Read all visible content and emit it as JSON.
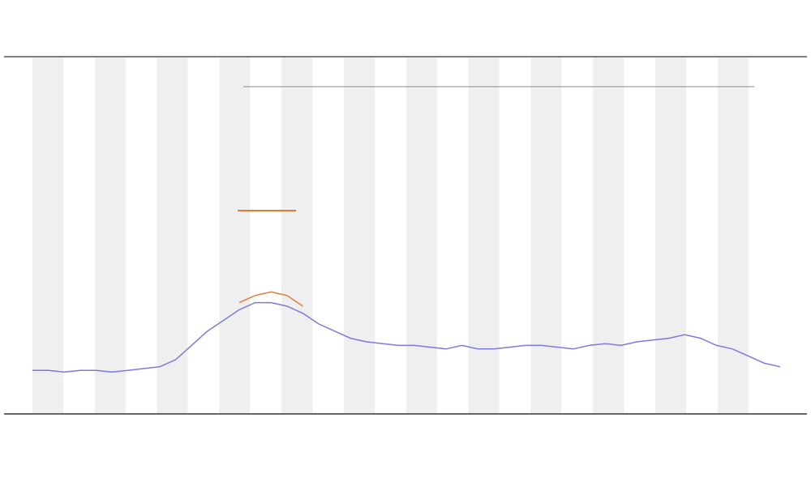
{
  "chart_data": {
    "type": "line",
    "x": [
      0,
      1,
      2,
      3,
      4,
      5,
      6,
      7,
      8,
      9,
      10,
      11,
      12,
      13,
      14,
      15,
      16,
      17,
      18,
      19,
      20,
      21,
      22,
      23,
      24,
      25,
      26,
      27,
      28,
      29,
      30,
      31,
      32,
      33,
      34,
      35,
      36,
      37,
      38,
      39,
      40,
      41,
      42,
      43,
      44,
      45,
      46,
      47
    ],
    "xlim": [
      0,
      47
    ],
    "ylim": [
      0,
      100
    ],
    "series": [
      {
        "color": "#7a7ae0",
        "values": [
          12,
          12,
          11.5,
          12,
          12,
          11.5,
          12,
          12.5,
          13,
          15,
          19,
          23,
          26,
          29,
          31,
          31,
          30,
          28,
          25,
          23,
          21,
          20,
          19.5,
          19,
          19,
          18.5,
          18,
          19,
          18,
          18,
          18.5,
          19,
          19,
          18.5,
          18,
          19,
          19.5,
          19,
          20,
          20.5,
          21,
          22,
          21,
          19,
          18,
          16,
          14,
          13
        ]
      },
      {
        "color": "#e07b39",
        "values": [
          null,
          null,
          null,
          null,
          null,
          null,
          null,
          null,
          null,
          null,
          null,
          null,
          null,
          31,
          33,
          34,
          33,
          30,
          null,
          null,
          null,
          null,
          null,
          null,
          null,
          null,
          null,
          null,
          null,
          null,
          null,
          null,
          null,
          null,
          null,
          null,
          null,
          null,
          null,
          null,
          null,
          null,
          null,
          null,
          null,
          null,
          null,
          null
        ]
      }
    ]
  }
}
